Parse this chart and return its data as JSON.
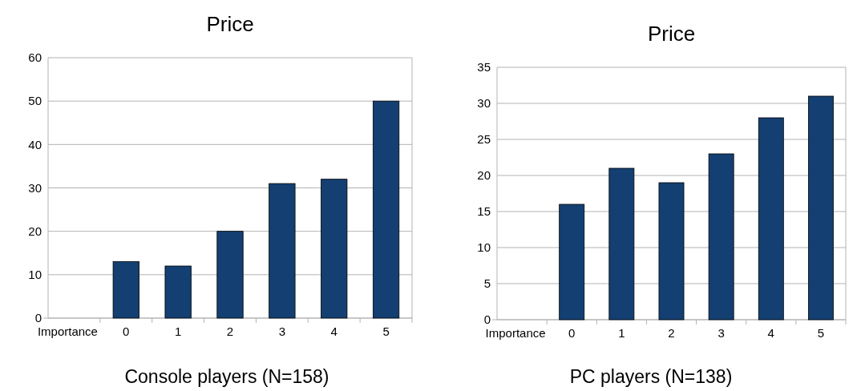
{
  "chart_data": [
    {
      "type": "bar",
      "title": "Price",
      "xlabel": "Console players (N=158)",
      "categories": [
        "Importance",
        "0",
        "1",
        "2",
        "3",
        "4",
        "5"
      ],
      "values": [
        null,
        13,
        12,
        20,
        31,
        32,
        50
      ],
      "color": "#133f72",
      "ylim": [
        0,
        60
      ],
      "yticks": [
        0,
        10,
        20,
        30,
        40,
        50,
        60
      ],
      "grid": "y"
    },
    {
      "type": "bar",
      "title": "Price",
      "xlabel": "PC players (N=138)",
      "categories": [
        "Importance",
        "0",
        "1",
        "2",
        "3",
        "4",
        "5"
      ],
      "values": [
        null,
        16,
        21,
        19,
        23,
        28,
        31
      ],
      "color": "#133f72",
      "ylim": [
        0,
        35
      ],
      "yticks": [
        0,
        5,
        10,
        15,
        20,
        25,
        30,
        35
      ],
      "grid": "y"
    }
  ]
}
